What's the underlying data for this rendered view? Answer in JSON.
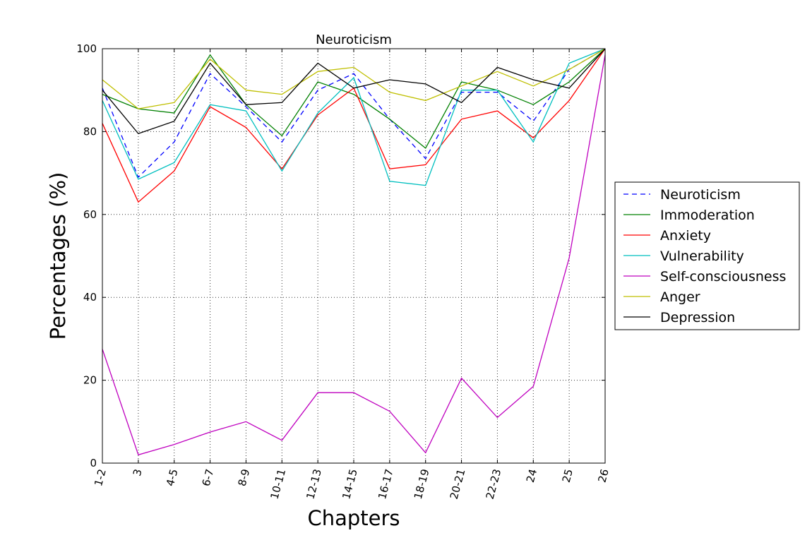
{
  "chart_data": {
    "type": "line",
    "title": "Neuroticism",
    "xlabel": "Chapters",
    "ylabel": "Percentages (%)",
    "ylim": [
      0,
      100
    ],
    "yticks": [
      0,
      20,
      40,
      60,
      80,
      100
    ],
    "grid": true,
    "legend_position": "right-outside",
    "categories": [
      "1-2",
      "3",
      "4-5",
      "6-7",
      "8-9",
      "10-11",
      "12-13",
      "14-15",
      "16-17",
      "18-19",
      "20-21",
      "22-23",
      "24",
      "25",
      "26"
    ],
    "series": [
      {
        "name": "Neuroticism",
        "color": "#0000ff",
        "dashed": true,
        "values": [
          90.5,
          69,
          77.5,
          94,
          86,
          77.5,
          90,
          94,
          83,
          73.5,
          89.5,
          89.5,
          82.5,
          95,
          100
        ]
      },
      {
        "name": "Immoderation",
        "color": "#008000",
        "dashed": false,
        "values": [
          89,
          85.5,
          84.5,
          98.5,
          86.5,
          79,
          92,
          89,
          83,
          76,
          92,
          90,
          86.5,
          92,
          100
        ]
      },
      {
        "name": "Anxiety",
        "color": "#ff0000",
        "dashed": false,
        "values": [
          82,
          63,
          70.5,
          86,
          81,
          71,
          84,
          90.5,
          71,
          72,
          83,
          85,
          78.5,
          87.5,
          100
        ]
      },
      {
        "name": "Vulnerability",
        "color": "#00bfbf",
        "dashed": false,
        "values": [
          87.5,
          68.5,
          72.5,
          86.5,
          85,
          70.5,
          84.5,
          93,
          68,
          67,
          90,
          90,
          77.5,
          96.5,
          100
        ]
      },
      {
        "name": "Self-consciousness",
        "color": "#bf00bf",
        "dashed": false,
        "values": [
          27.5,
          2,
          4.5,
          7.5,
          10,
          5.5,
          17,
          17,
          12.5,
          2.5,
          20.5,
          11,
          18.5,
          49.5,
          98.5
        ]
      },
      {
        "name": "Anger",
        "color": "#bfbf00",
        "dashed": false,
        "values": [
          92.5,
          85.5,
          87,
          97.5,
          90,
          89,
          94.5,
          95.5,
          89.5,
          87.5,
          91,
          94.5,
          91,
          95,
          100
        ]
      },
      {
        "name": "Depression",
        "color": "#000000",
        "dashed": false,
        "values": [
          90,
          79.5,
          82.5,
          96.5,
          86.5,
          87,
          96.5,
          90.5,
          92.5,
          91.5,
          87,
          95.5,
          92.5,
          90.5,
          100
        ]
      }
    ]
  }
}
